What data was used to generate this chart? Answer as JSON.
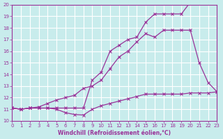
{
  "xlabel": "Windchill (Refroidissement éolien,°C)",
  "bg_color": "#c8ecec",
  "grid_color": "#ffffff",
  "line_color": "#993399",
  "xlim": [
    0,
    23
  ],
  "ylim": [
    10,
    20
  ],
  "xticks": [
    0,
    1,
    2,
    3,
    4,
    5,
    6,
    7,
    8,
    9,
    10,
    11,
    12,
    13,
    14,
    15,
    16,
    17,
    18,
    19,
    20,
    21,
    22,
    23
  ],
  "yticks": [
    10,
    11,
    12,
    13,
    14,
    15,
    16,
    17,
    18,
    19,
    20
  ],
  "line1_x": [
    0,
    1,
    2,
    3,
    4,
    5,
    6,
    7,
    8,
    9,
    10,
    11,
    12,
    13,
    14,
    15,
    16,
    17,
    18,
    19,
    20
  ],
  "line1_y": [
    11.1,
    11.0,
    11.1,
    11.1,
    11.1,
    11.1,
    11.1,
    11.1,
    11.1,
    13.5,
    14.2,
    16.0,
    16.5,
    17.0,
    17.2,
    18.5,
    19.2,
    19.2,
    19.2,
    19.2,
    20.2
  ],
  "line2_x": [
    0,
    1,
    2,
    3,
    4,
    5,
    6,
    7,
    8,
    9,
    10,
    11,
    12,
    13,
    14,
    15,
    16,
    17,
    18,
    19,
    20,
    21,
    22,
    23
  ],
  "line2_y": [
    11.1,
    11.0,
    11.1,
    11.2,
    11.5,
    11.8,
    12.0,
    12.2,
    12.8,
    13.0,
    13.5,
    14.5,
    15.5,
    16.0,
    16.8,
    17.5,
    17.2,
    17.8,
    17.8,
    17.8,
    17.8,
    15.0,
    13.3,
    12.5
  ],
  "line3_x": [
    0,
    1,
    2,
    3,
    4,
    5,
    6,
    7,
    8,
    9,
    10,
    11,
    12,
    13,
    14,
    15,
    16,
    17,
    18,
    19,
    20,
    21,
    22,
    23
  ],
  "line3_y": [
    11.1,
    11.0,
    11.1,
    11.1,
    11.1,
    11.0,
    10.7,
    10.55,
    10.5,
    11.0,
    11.3,
    11.5,
    11.7,
    11.9,
    12.1,
    12.3,
    12.3,
    12.3,
    12.3,
    12.3,
    12.4,
    12.4,
    12.4,
    12.5
  ]
}
